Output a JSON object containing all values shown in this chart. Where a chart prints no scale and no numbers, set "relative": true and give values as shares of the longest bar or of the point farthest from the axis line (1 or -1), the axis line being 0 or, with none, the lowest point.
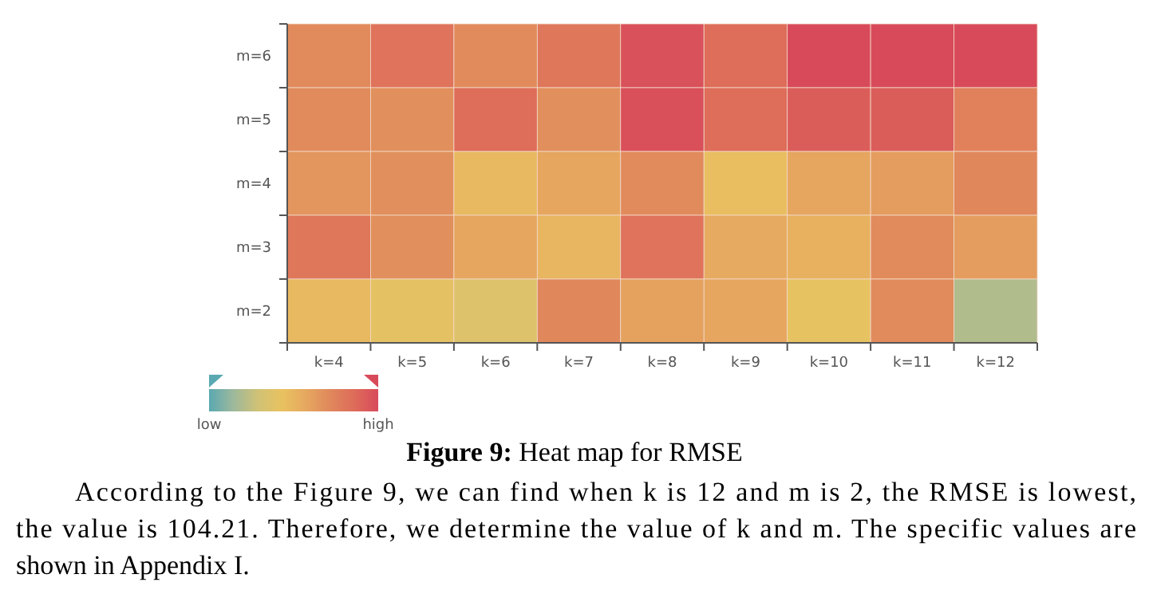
{
  "chart_data": {
    "type": "heatmap",
    "title": "Figure 9: Heat map for RMSE",
    "relative": true,
    "categories": [
      "k=4",
      "k=5",
      "k=6",
      "k=7",
      "k=8",
      "k=9",
      "k=10",
      "k=11",
      "k=12"
    ],
    "y_categories": [
      "m=6",
      "m=5",
      "m=4",
      "m=3",
      "m=2"
    ],
    "cells": [
      [
        0.7,
        0.82,
        0.7,
        0.8,
        0.97,
        0.85,
        1.0,
        1.0,
        1.0
      ],
      [
        0.7,
        0.68,
        0.85,
        0.68,
        0.98,
        0.85,
        0.92,
        0.92,
        0.75
      ],
      [
        0.65,
        0.68,
        0.48,
        0.58,
        0.7,
        0.45,
        0.58,
        0.62,
        0.72
      ],
      [
        0.8,
        0.68,
        0.58,
        0.5,
        0.82,
        0.56,
        0.52,
        0.7,
        0.62
      ],
      [
        0.48,
        0.4,
        0.36,
        0.72,
        0.6,
        0.58,
        0.42,
        0.7,
        0.2
      ]
    ],
    "clim": [
      0,
      1
    ],
    "cticks": [
      {
        "value": 0,
        "label": "low"
      },
      {
        "value": 1,
        "label": "high"
      }
    ],
    "annotations": [
      "According to the Figure 9, we can find when k is 12 and m is 2, the RMSE is lowest,",
      "the value is 104.21. Therefore, we determine the value of k and m. The specific values are",
      "shown in Appendix I."
    ]
  }
}
